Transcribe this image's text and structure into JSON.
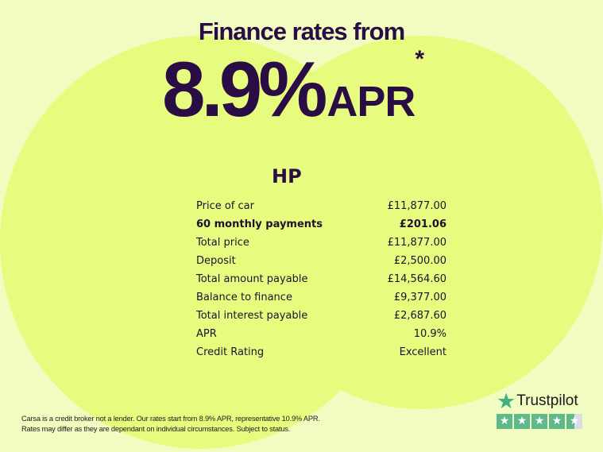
{
  "headline": "Finance rates from",
  "rate": {
    "value": "8.9%",
    "unit": "APR",
    "asterisk": "*"
  },
  "plan_title": "HP",
  "rows": [
    {
      "label": "Price of car",
      "value": "£11,877.00",
      "bold": false
    },
    {
      "label": "60 monthly payments",
      "value": "£201.06",
      "bold": true
    },
    {
      "label": "Total price",
      "value": "£11,877.00",
      "bold": false
    },
    {
      "label": "Deposit",
      "value": "£2,500.00",
      "bold": false
    },
    {
      "label": "Total amount payable",
      "value": "£14,564.60",
      "bold": false
    },
    {
      "label": "Balance to finance",
      "value": "£9,377.00",
      "bold": false
    },
    {
      "label": "Total interest payable",
      "value": "£2,687.60",
      "bold": false
    },
    {
      "label": "APR",
      "value": "10.9%",
      "bold": false
    },
    {
      "label": "Credit Rating",
      "value": "Excellent",
      "bold": false
    }
  ],
  "disclaimer": [
    "Carsa is a credit broker not a lender. Our rates start from 8.9% APR, representative 10.9% APR.",
    "Rates may differ as they are dependant on individual circumstances. Subject to status."
  ],
  "trustpilot": {
    "name": "Trustpilot",
    "rating_stars": 4.5,
    "max_stars": 5,
    "icon": "star-icon"
  },
  "colors": {
    "background": "#f1fcc0",
    "circle": "#e7fb7e",
    "text": "#2a0d45",
    "trustpilot_green": "#3fb37e"
  }
}
